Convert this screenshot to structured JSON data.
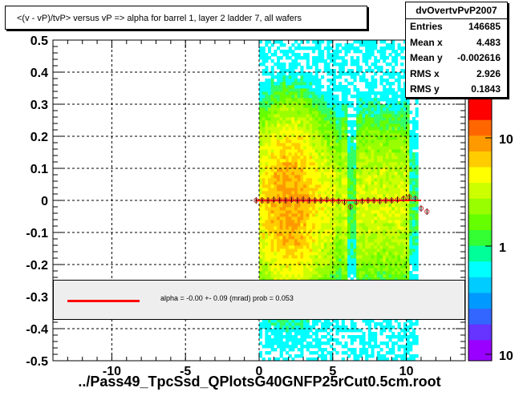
{
  "title": "<(v - vP)/tvP> versus   vP => alpha for barrel 1, layer 2 ladder 7, all wafers",
  "stats": {
    "name": "dvOvertvPvP2007",
    "rows": [
      {
        "label": "Entries",
        "value": "146685"
      },
      {
        "label": "Mean x",
        "value": "4.483"
      },
      {
        "label": "Mean y",
        "value": "-0.002616"
      },
      {
        "label": "RMS x",
        "value": "2.926"
      },
      {
        "label": "RMS y",
        "value": "0.1843"
      }
    ]
  },
  "fit_legend": {
    "text": "alpha =   -0.00 +-  0.09 (mrad) prob = 0.053",
    "color": "#ff0000"
  },
  "xlabel": "../Pass49_TpcSsd_QPlotsG40GNFP25rCut0.5cm.root",
  "colors": {
    "profile_marker": "#cc3333",
    "fit_line": "#ff0000",
    "grid": "#000000"
  },
  "chart_data": {
    "type": "heatmap",
    "xlim": [
      -14,
      14
    ],
    "ylim": [
      -0.5,
      0.5
    ],
    "x_ticks": [
      -10,
      -5,
      0,
      5,
      10
    ],
    "y_ticks": [
      -0.5,
      -0.4,
      -0.3,
      -0.2,
      -0.1,
      0,
      0.1,
      0.2,
      0.3,
      0.4,
      0.5
    ],
    "x_tick_labels": [
      "-10",
      "-5",
      "0",
      "5",
      "10"
    ],
    "y_tick_labels": [
      "-0.5",
      "-0.4",
      "-0.3",
      "-0.2",
      "-0.1",
      "0",
      "0.1",
      "0.2",
      "0.3",
      "0.4",
      "0.5"
    ],
    "grid": true,
    "z_scale": "log",
    "z_tick_labels": [
      "10",
      "1",
      "10"
    ],
    "data_x_range": [
      0,
      10.8
    ],
    "profile": {
      "x": [
        -0.2,
        0.2,
        0.6,
        1.0,
        1.4,
        1.8,
        2.2,
        2.6,
        3.0,
        3.4,
        3.8,
        4.2,
        4.6,
        5.0,
        5.4,
        5.8,
        6.2,
        6.6,
        7.0,
        7.4,
        7.8,
        8.2,
        8.6,
        9.0,
        9.4,
        9.8,
        10.2,
        10.6,
        11.0,
        11.4
      ],
      "y": [
        0.0,
        0.0,
        0.0,
        0.002,
        0.0,
        0.0,
        0.002,
        0.0,
        0.002,
        0.0,
        0.0,
        0.0,
        0.002,
        0.0,
        -0.002,
        -0.005,
        -0.02,
        -0.005,
        -0.002,
        0.0,
        0.0,
        -0.002,
        0.0,
        0.0,
        0.002,
        0.005,
        0.01,
        0.005,
        -0.025,
        -0.035
      ]
    },
    "fit": {
      "x": [
        -0.2,
        11.0
      ],
      "y": [
        0.0,
        0.0
      ]
    }
  }
}
